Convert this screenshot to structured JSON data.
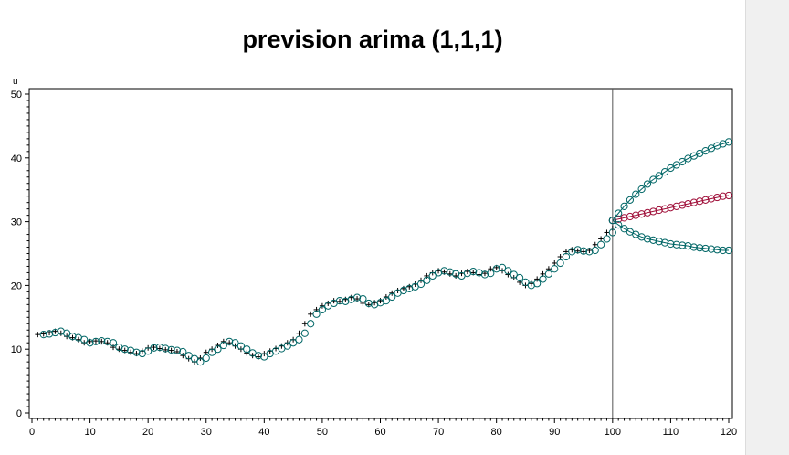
{
  "chart_data": {
    "type": "scatter",
    "title": "prevision arima (1,1,1)",
    "xlabel": "",
    "ylabel": "u",
    "xlim": [
      0,
      120
    ],
    "ylim": [
      0,
      50
    ],
    "xticks": [
      0,
      10,
      20,
      30,
      40,
      50,
      60,
      70,
      80,
      90,
      100,
      110,
      120
    ],
    "yticks": [
      0,
      10,
      20,
      30,
      40,
      50
    ],
    "reference_line_x": 100,
    "grid": false,
    "legend": "none",
    "colors": {
      "observed": "#000000",
      "fitted": "#006666",
      "forecast": "#a0103a",
      "bounds": "#006666"
    },
    "series": [
      {
        "marker": "plus",
        "x": [
          1,
          2,
          3,
          4,
          5,
          6,
          7,
          8,
          9,
          10,
          11,
          12,
          13,
          14,
          15,
          16,
          17,
          18,
          19,
          20,
          21,
          22,
          23,
          24,
          25,
          26,
          27,
          28,
          29,
          30,
          31,
          32,
          33,
          34,
          35,
          36,
          37,
          38,
          39,
          40,
          41,
          42,
          43,
          44,
          45,
          46,
          47,
          48,
          49,
          50,
          51,
          52,
          53,
          54,
          55,
          56,
          57,
          58,
          59,
          60,
          61,
          62,
          63,
          64,
          65,
          66,
          67,
          68,
          69,
          70,
          71,
          72,
          73,
          74,
          75,
          76,
          77,
          78,
          79,
          80,
          81,
          82,
          83,
          84,
          85,
          86,
          87,
          88,
          89,
          90,
          91,
          92,
          93,
          94,
          95,
          96,
          97,
          98,
          99,
          100
        ],
        "y": [
          12.3,
          12.4,
          12.6,
          12.8,
          12.5,
          12.0,
          11.8,
          11.5,
          11.0,
          11.2,
          11.3,
          11.2,
          11.0,
          10.3,
          10.0,
          9.8,
          9.5,
          9.3,
          9.7,
          10.2,
          10.3,
          10.1,
          9.9,
          9.8,
          9.6,
          9.0,
          8.5,
          8.0,
          8.6,
          9.5,
          10.0,
          10.6,
          11.2,
          11.0,
          10.5,
          10.0,
          9.4,
          9.0,
          8.8,
          9.3,
          9.7,
          10.1,
          10.5,
          11.0,
          11.5,
          12.5,
          14.0,
          15.5,
          16.2,
          16.8,
          17.2,
          17.6,
          17.5,
          17.8,
          18.1,
          17.9,
          17.2,
          17.0,
          17.3,
          17.6,
          18.2,
          18.8,
          19.2,
          19.5,
          19.8,
          20.2,
          20.8,
          21.5,
          22.0,
          22.3,
          22.1,
          21.8,
          21.5,
          21.9,
          22.2,
          22.0,
          21.7,
          21.9,
          22.6,
          22.8,
          22.3,
          21.7,
          21.2,
          20.5,
          20.0,
          20.3,
          21.0,
          21.8,
          22.6,
          23.5,
          24.5,
          25.3,
          25.6,
          25.4,
          25.3,
          25.5,
          26.4,
          27.3,
          28.3,
          29.0
        ]
      },
      {
        "marker": "circle",
        "x": [
          2,
          3,
          4,
          5,
          6,
          7,
          8,
          9,
          10,
          11,
          12,
          13,
          14,
          15,
          16,
          17,
          18,
          19,
          20,
          21,
          22,
          23,
          24,
          25,
          26,
          27,
          28,
          29,
          30,
          31,
          32,
          33,
          34,
          35,
          36,
          37,
          38,
          39,
          40,
          41,
          42,
          43,
          44,
          45,
          46,
          47,
          48,
          49,
          50,
          51,
          52,
          53,
          54,
          55,
          56,
          57,
          58,
          59,
          60,
          61,
          62,
          63,
          64,
          65,
          66,
          67,
          68,
          69,
          70,
          71,
          72,
          73,
          74,
          75,
          76,
          77,
          78,
          79,
          80,
          81,
          82,
          83,
          84,
          85,
          86,
          87,
          88,
          89,
          90,
          91,
          92,
          93,
          94,
          95,
          96,
          97,
          98,
          99,
          100
        ],
        "y": [
          12.3,
          12.4,
          12.6,
          12.8,
          12.5,
          12.0,
          11.8,
          11.5,
          11.0,
          11.2,
          11.3,
          11.2,
          11.0,
          10.3,
          10.0,
          9.8,
          9.5,
          9.3,
          9.7,
          10.2,
          10.3,
          10.1,
          9.9,
          9.8,
          9.6,
          9.0,
          8.5,
          8.0,
          8.6,
          9.5,
          10.0,
          10.6,
          11.2,
          11.0,
          10.5,
          10.0,
          9.4,
          9.0,
          8.8,
          9.3,
          9.7,
          10.1,
          10.5,
          11.0,
          11.5,
          12.5,
          14.0,
          15.5,
          16.2,
          16.8,
          17.2,
          17.6,
          17.5,
          17.8,
          18.1,
          17.9,
          17.2,
          17.0,
          17.3,
          17.6,
          18.2,
          18.8,
          19.2,
          19.5,
          19.8,
          20.2,
          20.8,
          21.5,
          22.0,
          22.3,
          22.1,
          21.8,
          21.5,
          21.9,
          22.2,
          22.0,
          21.7,
          21.9,
          22.6,
          22.8,
          22.3,
          21.7,
          21.2,
          20.5,
          20.0,
          20.3,
          21.0,
          21.8,
          22.6,
          23.5,
          24.5,
          25.3,
          25.6,
          25.4,
          25.3,
          25.5,
          26.4,
          27.3,
          28.3
        ]
      },
      {
        "marker": "circle-line",
        "x": [
          100,
          101,
          102,
          103,
          104,
          105,
          106,
          107,
          108,
          109,
          110,
          111,
          112,
          113,
          114,
          115,
          116,
          117,
          118,
          119,
          120
        ],
        "y": [
          30.2,
          30.4,
          30.6,
          30.8,
          31.0,
          31.2,
          31.4,
          31.6,
          31.8,
          32.0,
          32.2,
          32.4,
          32.6,
          32.8,
          33.0,
          33.2,
          33.4,
          33.6,
          33.8,
          34.0,
          34.1
        ]
      },
      {
        "marker": "circle-line",
        "x": [
          100,
          101,
          102,
          103,
          104,
          105,
          106,
          107,
          108,
          109,
          110,
          111,
          112,
          113,
          114,
          115,
          116,
          117,
          118,
          119,
          120
        ],
        "y": [
          30.2,
          31.3,
          32.4,
          33.4,
          34.3,
          35.1,
          35.9,
          36.6,
          37.2,
          37.8,
          38.4,
          38.9,
          39.4,
          39.9,
          40.3,
          40.7,
          41.1,
          41.5,
          41.9,
          42.2,
          42.5
        ]
      },
      {
        "marker": "circle-line",
        "x": [
          100,
          101,
          102,
          103,
          104,
          105,
          106,
          107,
          108,
          109,
          110,
          111,
          112,
          113,
          114,
          115,
          116,
          117,
          118,
          119,
          120
        ],
        "y": [
          30.2,
          29.5,
          28.9,
          28.4,
          28.0,
          27.6,
          27.3,
          27.1,
          26.9,
          26.7,
          26.5,
          26.4,
          26.3,
          26.2,
          26.0,
          25.9,
          25.8,
          25.7,
          25.6,
          25.5,
          25.5
        ]
      }
    ]
  }
}
